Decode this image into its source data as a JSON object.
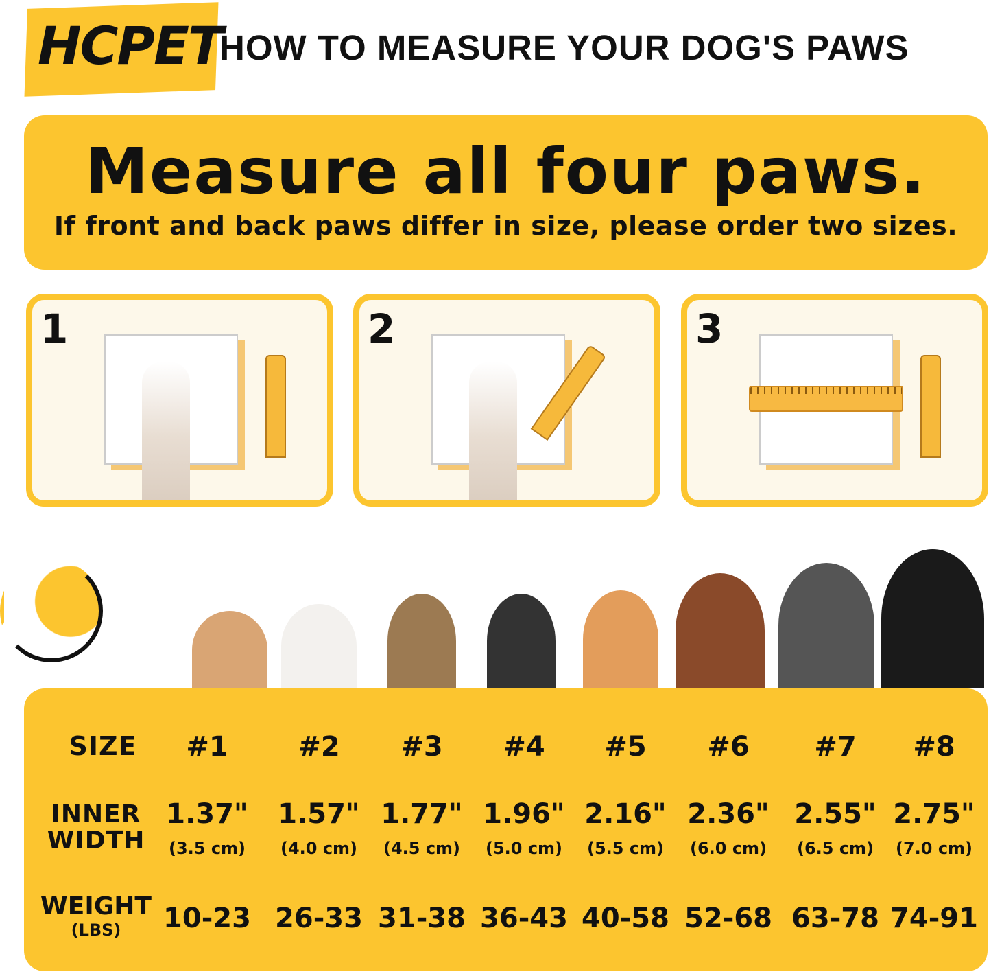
{
  "header": {
    "brand": "HCPET",
    "title": "HOW TO MEASURE YOUR DOG'S PAWS"
  },
  "banner": {
    "headline": "Measure all four paws.",
    "subtext": "If front and back paws differ in size, please order two sizes."
  },
  "steps": [
    {
      "number": "1"
    },
    {
      "number": "2"
    },
    {
      "number": "3"
    }
  ],
  "colors": {
    "accent": "#fcc52f",
    "panel_bg": "#fdf8ea"
  },
  "size_table": {
    "row_labels": {
      "size": "SIZE",
      "inner_width": [
        "INNER",
        "WIDTH"
      ],
      "weight": [
        "WEIGHT",
        "(LBS)"
      ]
    },
    "sizes": [
      "#1",
      "#2",
      "#3",
      "#4",
      "#5",
      "#6",
      "#7",
      "#8"
    ],
    "inner_width_in": [
      "1.37\"",
      "1.57\"",
      "1.77\"",
      "1.96\"",
      "2.16\"",
      "2.36\"",
      "2.55\"",
      "2.75\""
    ],
    "inner_width_cm": [
      "(3.5 cm)",
      "(4.0 cm)",
      "(4.5 cm)",
      "(5.0 cm)",
      "(5.5 cm)",
      "(6.0 cm)",
      "(6.5 cm)",
      "(7.0 cm)"
    ],
    "weight": [
      "10-23",
      "26-33",
      "31-38",
      "36-43",
      "40-58",
      "52-68",
      "63-78",
      "74-91"
    ]
  }
}
